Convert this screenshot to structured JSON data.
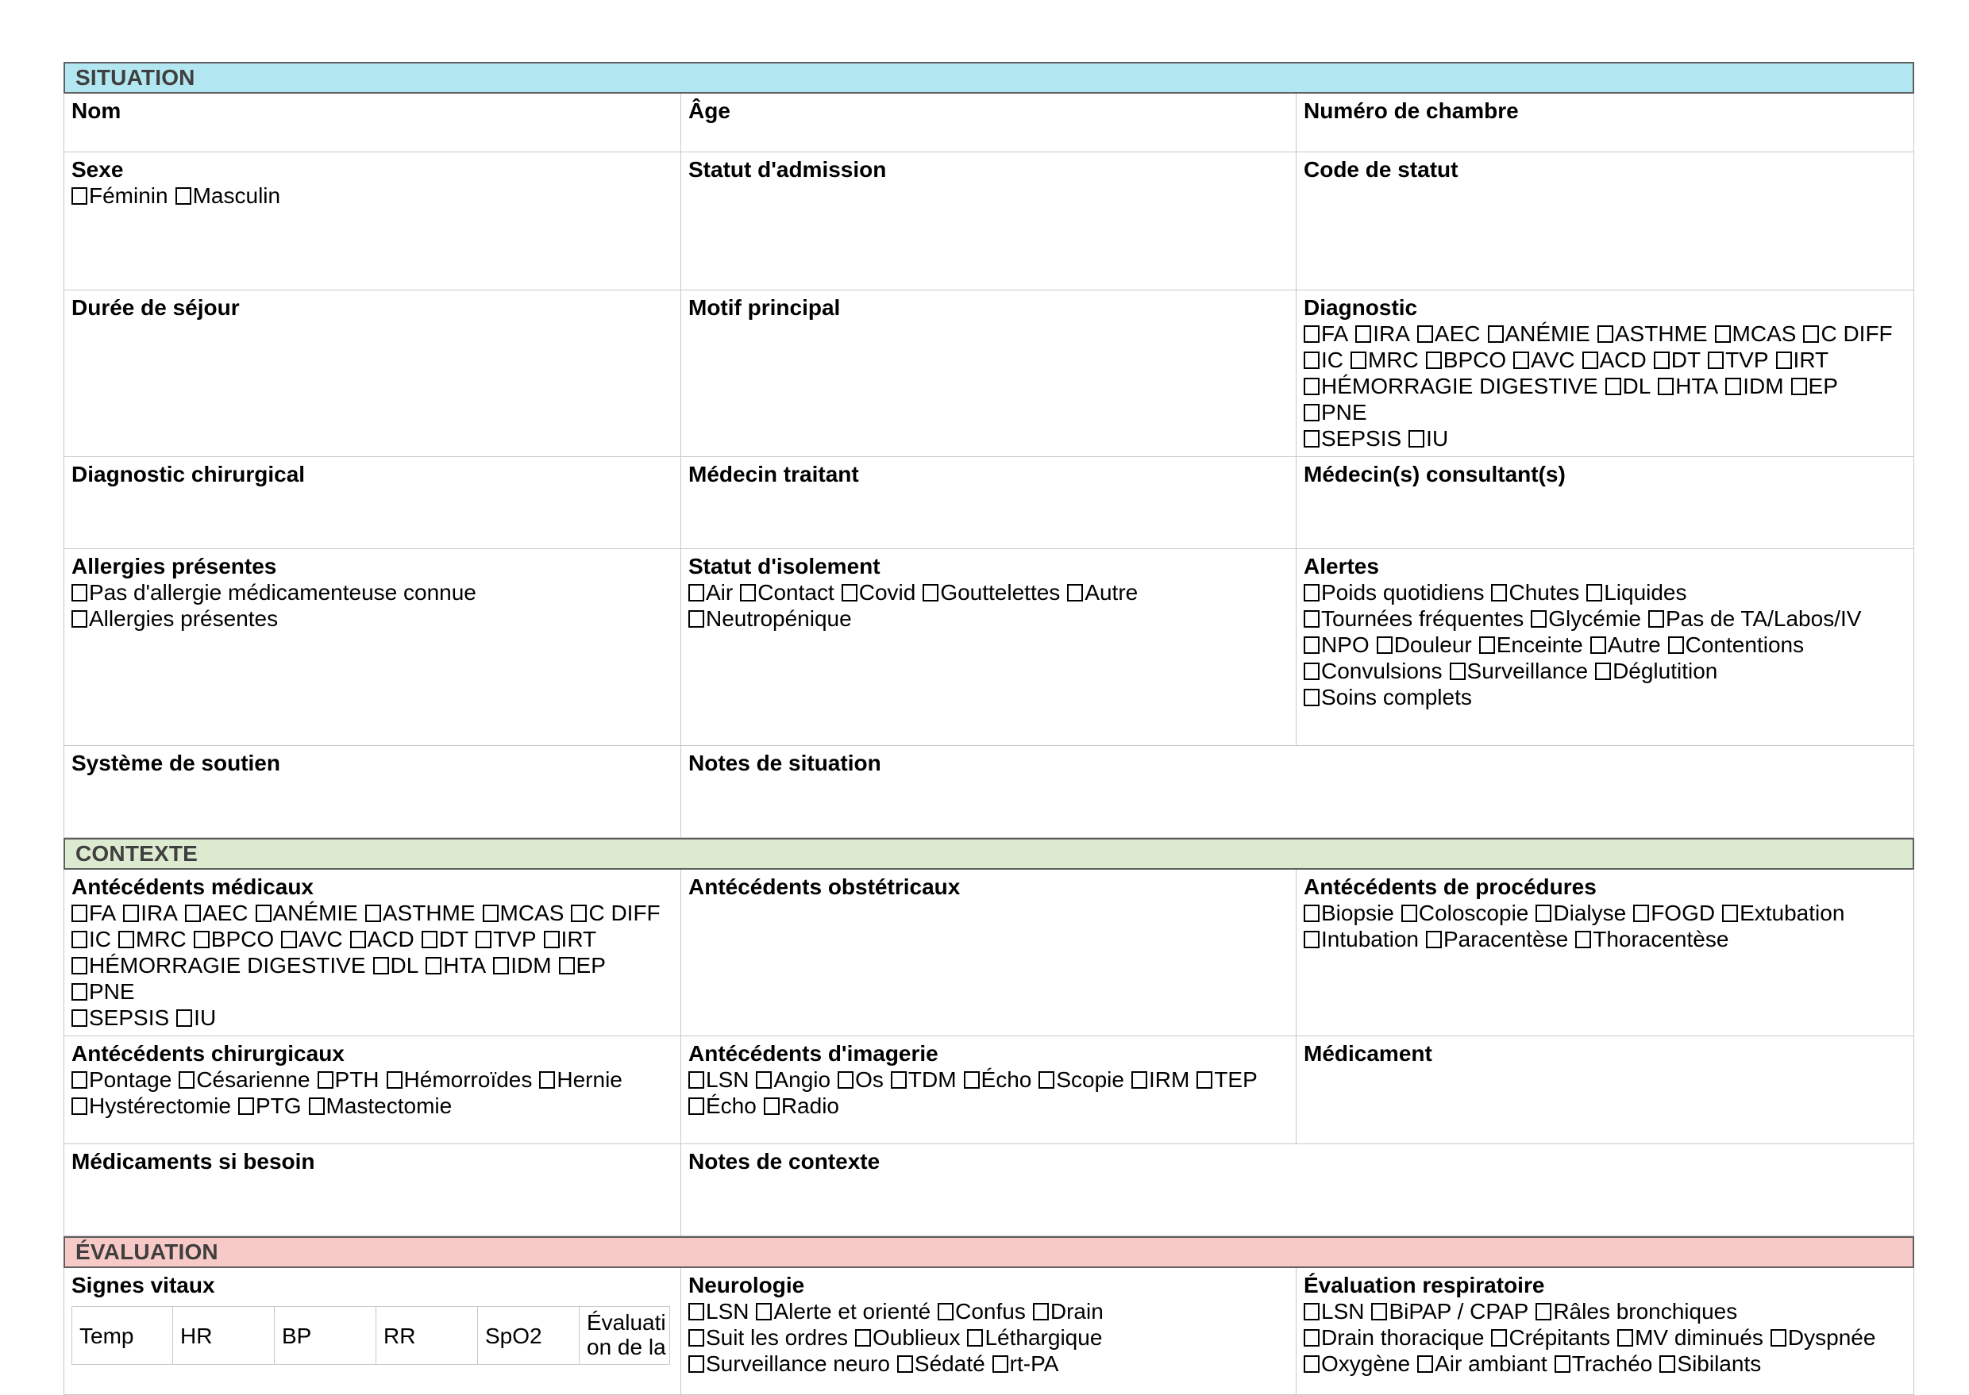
{
  "colors": {
    "situation_bar": "#b2e6f0",
    "contexte_bar": "#dcead0",
    "evaluation_bar": "#f7c9c7",
    "bar_text": "#3f3f3f",
    "grid_border": "#c8c8c8"
  },
  "situation": {
    "title": "SITUATION",
    "nom": "Nom",
    "age": "Âge",
    "chambre": "Numéro de chambre",
    "sexe": {
      "label": "Sexe",
      "lines": [
        [
          "Féminin",
          "Masculin"
        ]
      ]
    },
    "admission": "Statut d'admission",
    "code_statut": "Code de statut",
    "duree": "Durée de séjour",
    "motif": "Motif principal",
    "diagnostic": {
      "label": "Diagnostic",
      "lines": [
        [
          "FA",
          "IRA",
          "AEC",
          "ANÉMIE",
          "ASTHME",
          "MCAS",
          "C DIFF"
        ],
        [
          "IC",
          "MRC",
          "BPCO",
          "AVC",
          "ACD",
          "DT",
          "TVP",
          "IRT"
        ],
        [
          "HÉMORRAGIE DIGESTIVE",
          "DL",
          "HTA",
          "IDM",
          "EP",
          "PNE"
        ],
        [
          "SEPSIS",
          "IU"
        ]
      ]
    },
    "diag_chirurgical": "Diagnostic chirurgical",
    "medecin_traitant": "Médecin traitant",
    "medecin_consultant": "Médecin(s) consultant(s)",
    "allergies": {
      "label": "Allergies présentes",
      "lines": [
        [
          "Pas d'allergie médicamenteuse connue"
        ],
        [
          "Allergies présentes"
        ]
      ]
    },
    "isolement": {
      "label": "Statut d'isolement",
      "lines": [
        [
          "Air",
          "Contact",
          "Covid",
          "Gouttelettes",
          "Autre"
        ],
        [
          "Neutropénique"
        ]
      ]
    },
    "alertes": {
      "label": "Alertes",
      "lines": [
        [
          "Poids quotidiens",
          "Chutes",
          "Liquides"
        ],
        [
          "Tournées fréquentes",
          "Glycémie",
          "Pas de TA/Labos/IV"
        ],
        [
          "NPO",
          "Douleur",
          "Enceinte",
          "Autre",
          "Contentions"
        ],
        [
          "Convulsions",
          "Surveillance",
          "Déglutition"
        ],
        [
          "Soins complets"
        ]
      ]
    },
    "soutien": "Système de soutien",
    "notes": "Notes de situation"
  },
  "contexte": {
    "title": "CONTEXTE",
    "ant_medicaux": {
      "label": "Antécédents médicaux",
      "lines": [
        [
          "FA",
          "IRA",
          "AEC",
          "ANÉMIE",
          "ASTHME",
          "MCAS",
          "C DIFF"
        ],
        [
          "IC",
          "MRC",
          "BPCO",
          "AVC",
          "ACD",
          "DT",
          "TVP",
          "IRT"
        ],
        [
          "HÉMORRAGIE DIGESTIVE",
          "DL",
          "HTA",
          "IDM",
          "EP",
          "PNE"
        ],
        [
          "SEPSIS",
          "IU"
        ]
      ]
    },
    "ant_obstetricaux": "Antécédents obstétricaux",
    "ant_procedures": {
      "label": "Antécédents de procédures",
      "lines": [
        [
          "Biopsie",
          "Coloscopie",
          "Dialyse",
          "FOGD",
          "Extubation"
        ],
        [
          "Intubation",
          "Paracentèse",
          "Thoracentèse"
        ]
      ]
    },
    "ant_chirurgicaux": {
      "label": "Antécédents chirurgicaux",
      "lines": [
        [
          "Pontage",
          "Césarienne",
          "PTH",
          "Hémorroïdes",
          "Hernie"
        ],
        [
          "Hystérectomie",
          "PTG",
          "Mastectomie"
        ]
      ]
    },
    "ant_imagerie": {
      "label": "Antécédents d'imagerie",
      "lines": [
        [
          "LSN",
          "Angio",
          "Os",
          "TDM",
          "Écho",
          "Scopie",
          "IRM",
          "TEP"
        ],
        [
          "Écho",
          "Radio"
        ]
      ]
    },
    "medicament": "Médicament",
    "med_besoin": "Médicaments si besoin",
    "notes": "Notes de contexte"
  },
  "evaluation": {
    "title": "ÉVALUATION",
    "signes_vitaux": {
      "label": "Signes vitaux",
      "columns": [
        "Temp",
        "HR",
        "BP",
        "RR",
        "SpO2",
        "Évaluation de la"
      ]
    },
    "neurologie": {
      "label": "Neurologie",
      "lines": [
        [
          "LSN",
          "Alerte et orienté",
          "Confus",
          "Drain"
        ],
        [
          "Suit les ordres",
          "Oublieux",
          "Léthargique"
        ],
        [
          "Surveillance neuro",
          "Sédaté",
          "rt-PA"
        ]
      ]
    },
    "respiratoire": {
      "label": "Évaluation respiratoire",
      "lines": [
        [
          "LSN",
          "BiPAP / CPAP",
          "Râles bronchiques"
        ],
        [
          "Drain thoracique",
          "Crépitants",
          "MV diminués",
          "Dyspnée"
        ],
        [
          "Oxygène",
          "Air ambiant",
          "Trachéo",
          "Sibilants"
        ]
      ]
    }
  }
}
